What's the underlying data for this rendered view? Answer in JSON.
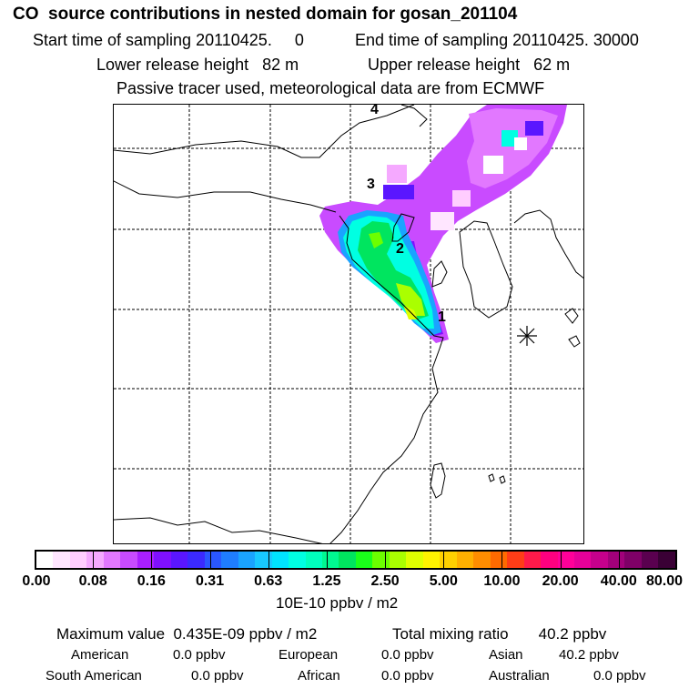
{
  "header": {
    "title": "CO  source contributions in nested domain for gosan_201104",
    "start_label": "Start time of sampling 20110425.     0",
    "end_label": "End time of sampling 20110425. 30000",
    "lower_label": "Lower release height   82 m",
    "upper_label": "Upper release height   62 m",
    "tracer_label": "Passive tracer used, meteorological data are from ECMWF"
  },
  "map": {
    "markers": [
      "1",
      "2",
      "3",
      "4"
    ],
    "station_symbol": "✳"
  },
  "colorbar": {
    "colors": [
      "#ffffff",
      "#ffe6ff",
      "#ffcdff",
      "#f5a9ff",
      "#e278ff",
      "#c84bff",
      "#a81fff",
      "#7f10ff",
      "#5a16ff",
      "#3b2aff",
      "#2a57ff",
      "#1f7dff",
      "#1aa3ff",
      "#18c8ff",
      "#00e4ff",
      "#00ffe2",
      "#00ffbd",
      "#00f991",
      "#00e55f",
      "#1aff1a",
      "#6cff00",
      "#aaff00",
      "#dfff00",
      "#fff200",
      "#ffd000",
      "#ffb000",
      "#ff8d00",
      "#ff6a00",
      "#ff3d17",
      "#ff1a4a",
      "#ff0080",
      "#ff0099",
      "#e60099",
      "#c6008c",
      "#a2007a",
      "#7f0067",
      "#5a004f",
      "#3a0035"
    ],
    "tick_labels": [
      "0.00",
      "0.08",
      "0.16",
      "0.31",
      "0.63",
      "1.25",
      "2.50",
      "5.00",
      "10.00",
      "20.00",
      "40.00",
      "80.00"
    ],
    "unit": "10E-10 ppbv / m2"
  },
  "stats": {
    "max_label": "Maximum value  0.435E-09 ppbv / m2",
    "total_label": "Total mixing ratio       40.2 ppbv",
    "regions": [
      {
        "name": "American",
        "value": "0.0 ppbv"
      },
      {
        "name": "European",
        "value": "0.0 ppbv"
      },
      {
        "name": "Asian",
        "value": "40.2 ppbv"
      },
      {
        "name": "South American",
        "value": "0.0 ppbv"
      },
      {
        "name": "African",
        "value": "0.0 ppbv"
      },
      {
        "name": "Australian",
        "value": "0.0 ppbv"
      }
    ]
  }
}
